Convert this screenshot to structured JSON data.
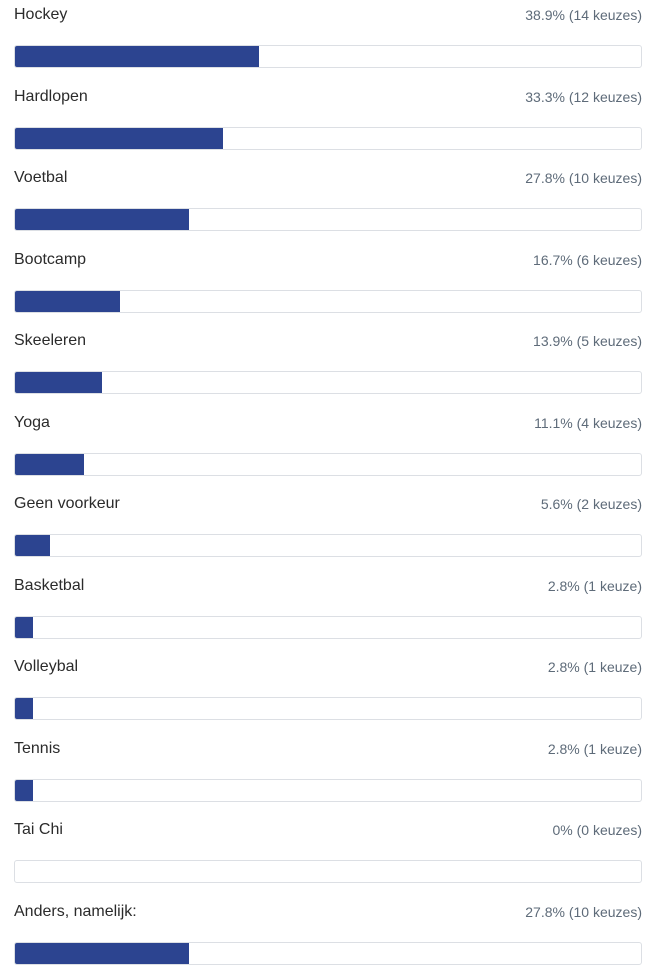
{
  "colors": {
    "bar": "#2c4490",
    "track_border": "#dcdfe4",
    "label": "#2b2b2b",
    "stat": "#5e6b79"
  },
  "chart_data": {
    "type": "bar",
    "orientation": "horizontal",
    "categories": [
      "Hockey",
      "Hardlopen",
      "Voetbal",
      "Bootcamp",
      "Skeeleren",
      "Yoga",
      "Geen voorkeur",
      "Basketbal",
      "Volleybal",
      "Tennis",
      "Tai Chi",
      "Anders, namelijk:"
    ],
    "values": [
      38.9,
      33.3,
      27.8,
      16.7,
      13.9,
      11.1,
      5.6,
      2.8,
      2.8,
      2.8,
      0,
      27.8
    ],
    "xlim": [
      0,
      100
    ]
  },
  "options": [
    {
      "label": "Hockey",
      "stat": "38.9% (14 keuzes)",
      "percent": 38.9
    },
    {
      "label": "Hardlopen",
      "stat": "33.3% (12 keuzes)",
      "percent": 33.3
    },
    {
      "label": "Voetbal",
      "stat": "27.8% (10 keuzes)",
      "percent": 27.8
    },
    {
      "label": "Bootcamp",
      "stat": "16.7% (6 keuzes)",
      "percent": 16.7
    },
    {
      "label": "Skeeleren",
      "stat": "13.9% (5 keuzes)",
      "percent": 13.9
    },
    {
      "label": "Yoga",
      "stat": "11.1% (4 keuzes)",
      "percent": 11.1
    },
    {
      "label": "Geen voorkeur",
      "stat": "5.6% (2 keuzes)",
      "percent": 5.6
    },
    {
      "label": "Basketbal",
      "stat": "2.8% (1 keuze)",
      "percent": 2.8
    },
    {
      "label": "Volleybal",
      "stat": "2.8% (1 keuze)",
      "percent": 2.8
    },
    {
      "label": "Tennis",
      "stat": "2.8% (1 keuze)",
      "percent": 2.8
    },
    {
      "label": "Tai Chi",
      "stat": "0% (0 keuzes)",
      "percent": 0
    },
    {
      "label": "Anders, namelijk:",
      "stat": "27.8% (10 keuzes)",
      "percent": 27.8
    }
  ]
}
